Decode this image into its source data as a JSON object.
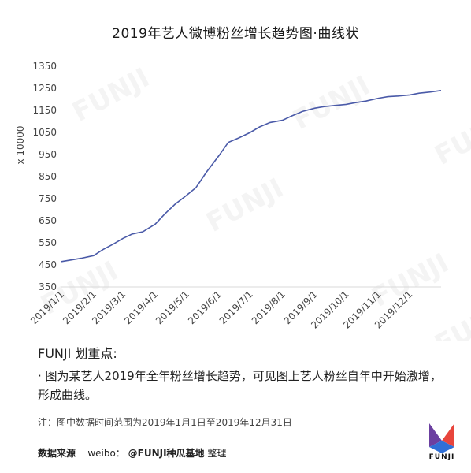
{
  "title": "2019年艺人微博粉丝增长趋势图·曲线状",
  "watermark_text": "FUNJI",
  "chart_data": {
    "type": "line",
    "title": "2019年艺人微博粉丝增长趋势图·曲线状",
    "ylabel": "x 10000",
    "xlabel": "",
    "ylim": [
      350,
      1350
    ],
    "yticks": [
      350,
      450,
      550,
      650,
      750,
      850,
      950,
      1050,
      1150,
      1250,
      1350
    ],
    "xticks": [
      "2019/1/1",
      "2019/2/1",
      "2019/3/1",
      "2019/4/1",
      "2019/5/1",
      "2019/6/1",
      "2019/7/1",
      "2019/8/1",
      "2019/9/1",
      "2019/10/1",
      "2019/11/1",
      "2019/12/1"
    ],
    "grid": false,
    "color": "#4a5aa8",
    "series": [
      {
        "x": [
          "2019/1/1",
          "2019/1/10",
          "2019/1/20",
          "2019/2/1",
          "2019/2/10",
          "2019/2/20",
          "2019/3/1",
          "2019/3/10",
          "2019/3/20",
          "2019/4/1",
          "2019/4/10",
          "2019/4/20",
          "2019/5/1",
          "2019/5/10",
          "2019/5/20",
          "2019/6/1",
          "2019/6/10",
          "2019/6/20",
          "2019/7/1",
          "2019/7/10",
          "2019/7/20",
          "2019/8/1",
          "2019/8/10",
          "2019/8/20",
          "2019/9/1",
          "2019/9/10",
          "2019/9/20",
          "2019/10/1",
          "2019/10/10",
          "2019/10/20",
          "2019/11/1",
          "2019/11/10",
          "2019/11/20",
          "2019/12/1",
          "2019/12/10",
          "2019/12/20",
          "2019/12/31"
        ],
        "values": [
          465,
          472,
          480,
          492,
          520,
          545,
          570,
          590,
          600,
          635,
          680,
          725,
          765,
          800,
          870,
          945,
          1005,
          1025,
          1050,
          1075,
          1095,
          1105,
          1125,
          1145,
          1160,
          1167,
          1172,
          1177,
          1185,
          1192,
          1205,
          1212,
          1215,
          1220,
          1228,
          1233,
          1240
        ]
      }
    ]
  },
  "notes": {
    "heading": "FUNJI 划重点:",
    "body": "· 图为某艺人2019年全年粉丝增长趋势，可见图上艺人粉丝自年中开始激增，形成曲线。"
  },
  "footnote": "注：图中数据时间范围为2019年1月1日至2019年12月31日",
  "source": {
    "label": "数据来源",
    "platform": "weibo：",
    "handle": "@FUNJI种瓜基地",
    "suffix": " 整理"
  },
  "logo_text": "FUNJI",
  "logo_colors": {
    "purple": "#6b3fa0",
    "red": "#e8453c",
    "blue": "#2f6fd6"
  }
}
